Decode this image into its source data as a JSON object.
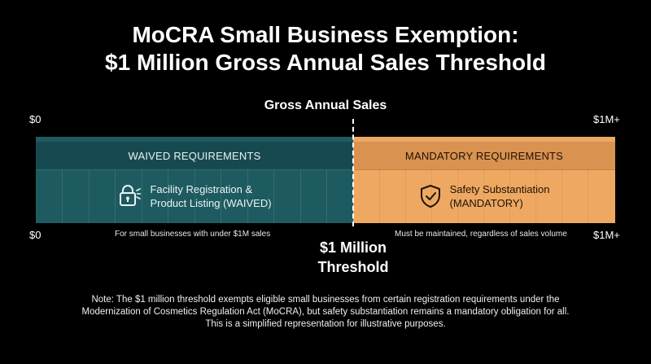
{
  "title": {
    "line1": "MoCRA Small Business Exemption:",
    "line2": "$1 Million Gross Annual Sales Threshold"
  },
  "axis": {
    "label": "Gross Annual Sales",
    "start": "$0",
    "end": "$1M+"
  },
  "left_zone": {
    "header": "WAIVED REQUIREMENTS",
    "icon": "lock-icon",
    "text_line1": "Facility Registration &",
    "text_line2": "Product Listing (WAIVED)",
    "caption": "For small businesses with under $1M sales",
    "color": "#1e5b61"
  },
  "right_zone": {
    "header": "MANDATORY REQUIREMENTS",
    "icon": "shield-check-icon",
    "text_line1": "Safety Substantiation",
    "text_line2": "(MANDATORY)",
    "caption": "Must be maintained, regardless of sales volume",
    "color": "#eea862"
  },
  "threshold": {
    "line1": "$1 Million",
    "line2": "Threshold"
  },
  "note": "Note: The $1 million threshold exempts eligible small businesses from certain registration requirements under the Modernization of Cosmetics Regulation Act (MoCRA), but safety substantiation remains a mandatory obligation for all. This is a simplified representation for illustrative purposes."
}
